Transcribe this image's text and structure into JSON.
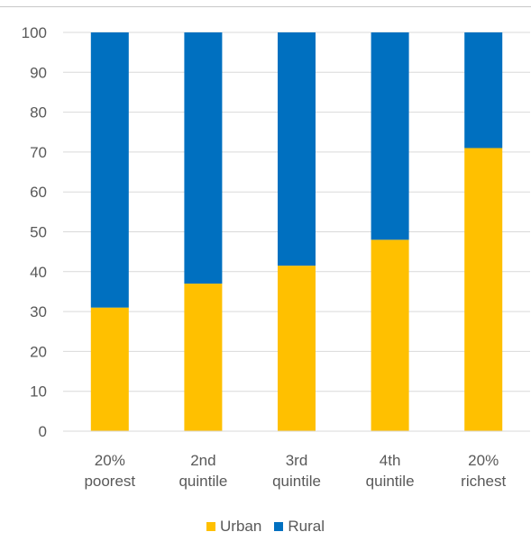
{
  "chart_data": {
    "type": "bar",
    "stacked": true,
    "categories": [
      [
        "20%",
        "poorest"
      ],
      [
        "2nd",
        "quintile"
      ],
      [
        "3rd",
        "quintile"
      ],
      [
        "4th",
        "quintile"
      ],
      [
        "20%",
        "richest"
      ]
    ],
    "series": [
      {
        "name": "Urban",
        "color": "#FFC000",
        "values": [
          31,
          37,
          41.5,
          48,
          71
        ]
      },
      {
        "name": "Rural",
        "color": "#0070C0",
        "values": [
          69,
          63,
          58.5,
          52,
          29
        ]
      }
    ],
    "ylim": [
      0,
      100
    ],
    "yticks": [
      0,
      10,
      20,
      30,
      40,
      50,
      60,
      70,
      80,
      90,
      100
    ],
    "grid": true,
    "legend": "bottom"
  }
}
